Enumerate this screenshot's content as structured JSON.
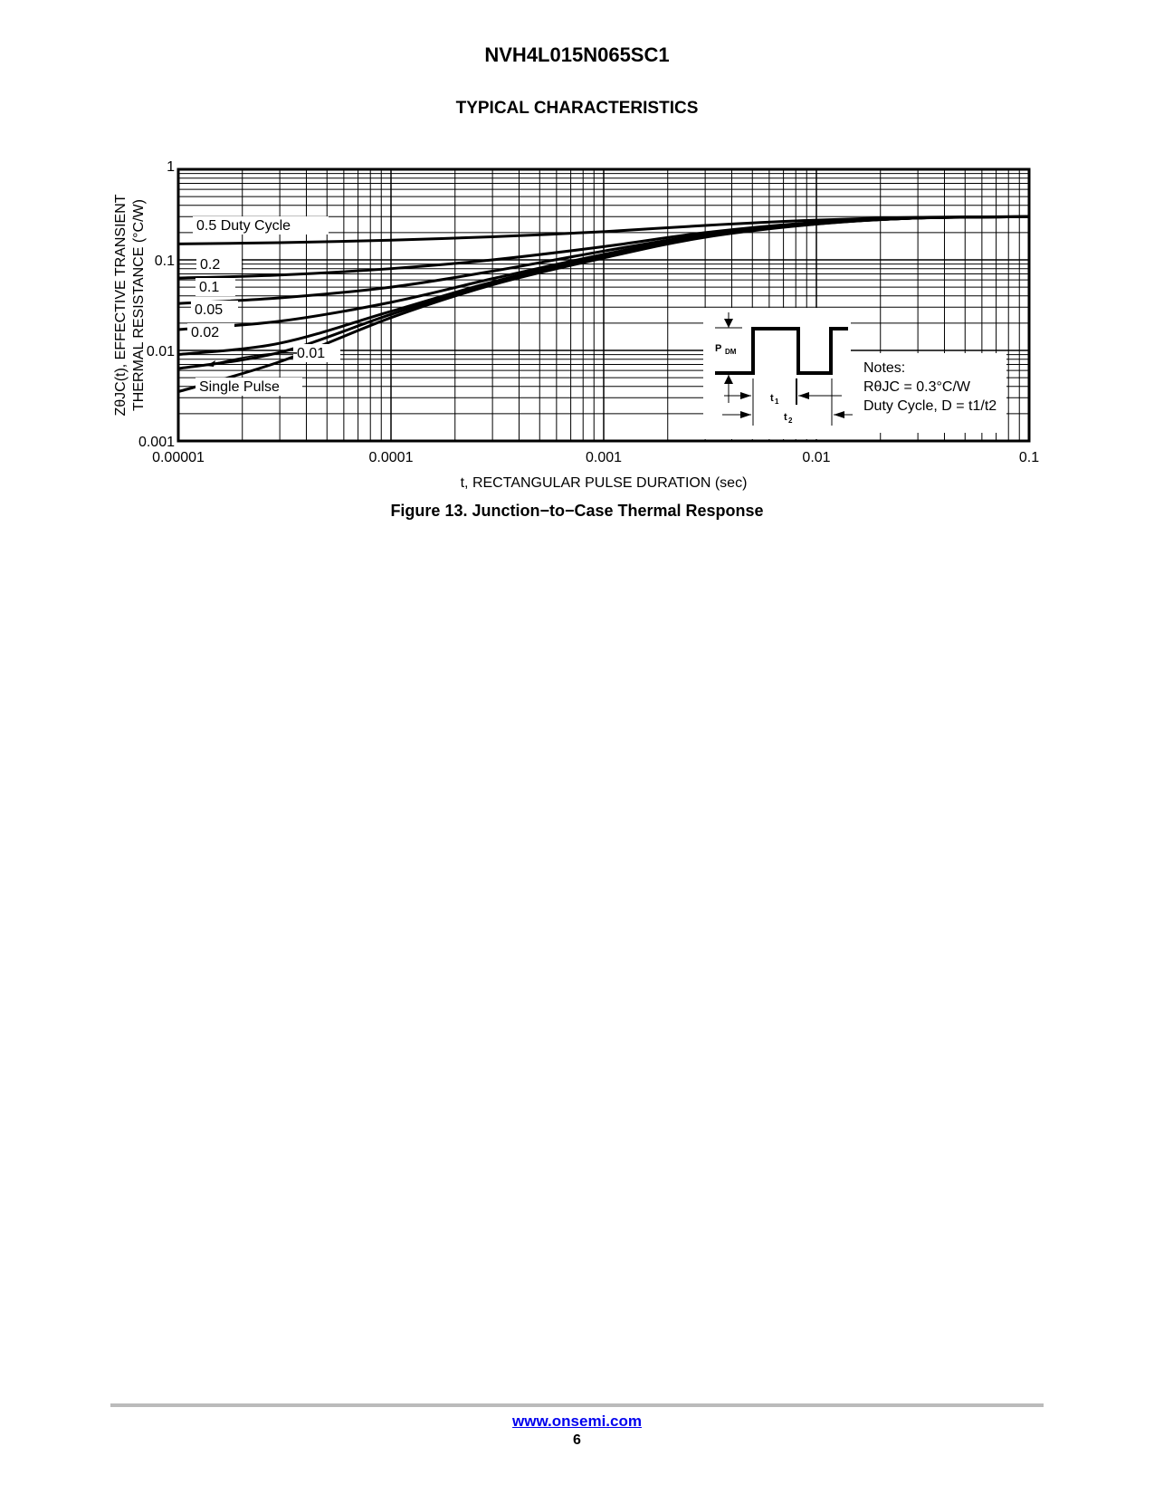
{
  "header": {
    "part_number": "NVH4L015N065SC1",
    "section_title": "TYPICAL CHARACTERISTICS"
  },
  "figure": {
    "caption": "Figure 13. Junction−to−Case Thermal Response"
  },
  "footer": {
    "link": "www.onsemi.com",
    "page_number": "6"
  },
  "chart_data": {
    "type": "line",
    "xscale": "log",
    "yscale": "log",
    "xlim": [
      1e-05,
      0.1
    ],
    "ylim": [
      0.001,
      1
    ],
    "grid": true,
    "xlabel": "t, RECTANGULAR PULSE DURATION (sec)",
    "ylabel_line1": "ZθJC(t), EFFECTIVE TRANSIENT",
    "ylabel_line2": "THERMAL RESISTANCE (°C/W)",
    "xticks": [
      "0.00001",
      "0.0001",
      "0.001",
      "0.01",
      "0.1"
    ],
    "yticks": [
      "0.001",
      "0.01",
      "0.1",
      "1"
    ],
    "x": [
      1e-05,
      3e-05,
      0.0001,
      0.0003,
      0.001,
      0.003,
      0.01,
      0.03,
      0.1
    ],
    "series": [
      {
        "name": "0.5 Duty Cycle",
        "values": [
          0.15,
          0.155,
          0.165,
          0.18,
          0.205,
          0.24,
          0.275,
          0.295,
          0.3
        ]
      },
      {
        "name": "0.2",
        "values": [
          0.063,
          0.068,
          0.08,
          0.1,
          0.14,
          0.2,
          0.26,
          0.29,
          0.3
        ]
      },
      {
        "name": "0.1",
        "values": [
          0.033,
          0.038,
          0.05,
          0.075,
          0.125,
          0.19,
          0.255,
          0.29,
          0.3
        ]
      },
      {
        "name": "0.05",
        "values": [
          0.017,
          0.021,
          0.034,
          0.062,
          0.115,
          0.185,
          0.25,
          0.29,
          0.3
        ]
      },
      {
        "name": "0.02",
        "values": [
          0.009,
          0.012,
          0.027,
          0.057,
          0.11,
          0.18,
          0.25,
          0.29,
          0.3
        ]
      },
      {
        "name": "0.01",
        "values": [
          0.0063,
          0.0095,
          0.025,
          0.055,
          0.108,
          0.18,
          0.25,
          0.29,
          0.3
        ]
      },
      {
        "name": "Single Pulse",
        "values": [
          0.0035,
          0.0075,
          0.023,
          0.053,
          0.105,
          0.178,
          0.248,
          0.29,
          0.3
        ]
      }
    ],
    "inset": {
      "pulse_label": "P",
      "pulse_sub": "DM",
      "t1": "t",
      "t1_sub": "1",
      "t2": "t",
      "t2_sub": "2",
      "notes_title": "Notes:",
      "note_r": "RθJC = 0.3°C/W",
      "note_duty": "Duty Cycle, D = t1/t2"
    }
  }
}
